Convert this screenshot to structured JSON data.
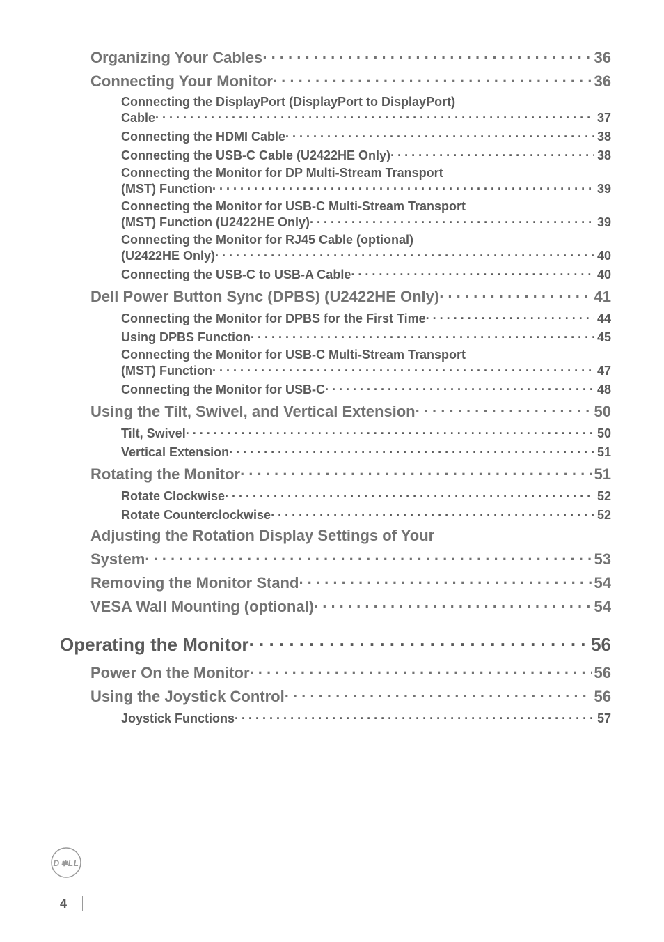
{
  "toc": [
    {
      "level": "h2",
      "title": "Organizing Your Cables",
      "page": "36"
    },
    {
      "level": "h2",
      "title": "Connecting Your Monitor",
      "page": "36"
    },
    {
      "level": "h3",
      "split": true,
      "line1": "Connecting the DisplayPort (DisplayPort to DisplayPort)",
      "line2": "Cable",
      "page": "37"
    },
    {
      "level": "h3",
      "title": "Connecting the HDMI Cable",
      "page": "38"
    },
    {
      "level": "h3",
      "title": "Connecting the USB-C Cable (U2422HE Only)",
      "page": "38"
    },
    {
      "level": "h3",
      "split": true,
      "line1": "Connecting the Monitor for DP Multi-Stream Transport",
      "line2": "(MST) Function",
      "page": "39"
    },
    {
      "level": "h3",
      "split": true,
      "line1": "Connecting the Monitor for USB-C Multi-Stream Transport",
      "line2": "(MST) Function (U2422HE Only)",
      "page": "39"
    },
    {
      "level": "h3",
      "split": true,
      "line1": "Connecting the Monitor for RJ45 Cable (optional)",
      "line2": "(U2422HE Only)",
      "page": "40"
    },
    {
      "level": "h3",
      "title": "Connecting the USB-C to USB-A Cable",
      "page": "40"
    },
    {
      "level": "h2",
      "title": "Dell Power Button Sync (DPBS) (U2422HE Only)",
      "page": "41"
    },
    {
      "level": "h3",
      "title": "Connecting the Monitor for DPBS for the First Time",
      "page": "44"
    },
    {
      "level": "h3",
      "title": "Using DPBS Function",
      "page": "45"
    },
    {
      "level": "h3",
      "split": true,
      "line1": "Connecting the Monitor for USB-C Multi-Stream Transport",
      "line2": "(MST) Function",
      "page": "47"
    },
    {
      "level": "h3",
      "title": "Connecting the Monitor for USB-C",
      "page": "48"
    },
    {
      "level": "h2",
      "title": "Using the Tilt, Swivel, and Vertical Extension",
      "page": "50"
    },
    {
      "level": "h3",
      "title": "Tilt, Swivel",
      "page": "50"
    },
    {
      "level": "h3",
      "title": "Vertical Extension",
      "page": "51"
    },
    {
      "level": "h2",
      "title": "Rotating the Monitor",
      "page": "51"
    },
    {
      "level": "h3",
      "title": "Rotate Clockwise",
      "page": "52"
    },
    {
      "level": "h3",
      "title": "Rotate Counterclockwise",
      "page": "52"
    },
    {
      "level": "h2",
      "split": true,
      "line1": "Adjusting the Rotation Display Settings of Your",
      "line2": "System",
      "page": "53"
    },
    {
      "level": "h2",
      "title": "Removing the Monitor Stand",
      "page": "54"
    },
    {
      "level": "h2",
      "title": "VESA Wall Mounting (optional)",
      "page": "54"
    },
    {
      "level": "h1",
      "title": "Operating the Monitor",
      "page": "56"
    },
    {
      "level": "h2",
      "title": "Power On the Monitor",
      "page": "56"
    },
    {
      "level": "h2",
      "title": "Using the Joystick Control",
      "page": "56"
    },
    {
      "level": "h3",
      "title": "Joystick Functions",
      "page": "57"
    }
  ],
  "footer": {
    "page_number": "4"
  },
  "colors": {
    "h1_color": "#5a5a5a",
    "h2_color": "#737373",
    "h3_color": "#5a5a5a",
    "logo_stroke": "#9a9a9a"
  }
}
